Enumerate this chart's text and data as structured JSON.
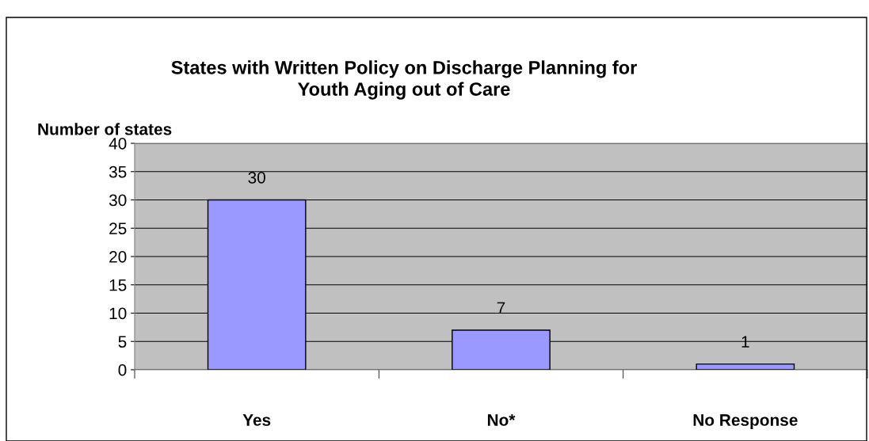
{
  "chart_data": {
    "type": "bar",
    "title": "States with Written Policy on Discharge Planning for\nYouth Aging out of Care",
    "ylabel": "Number of states",
    "categories": [
      "Yes",
      "No*",
      "No Response"
    ],
    "values": [
      30,
      7,
      1
    ],
    "color": "#9999ff",
    "ylim": [
      0,
      40
    ],
    "yticks": [
      0,
      5,
      10,
      15,
      20,
      25,
      30,
      35,
      40
    ],
    "grid": "y",
    "data_labels": true,
    "legend": false
  }
}
